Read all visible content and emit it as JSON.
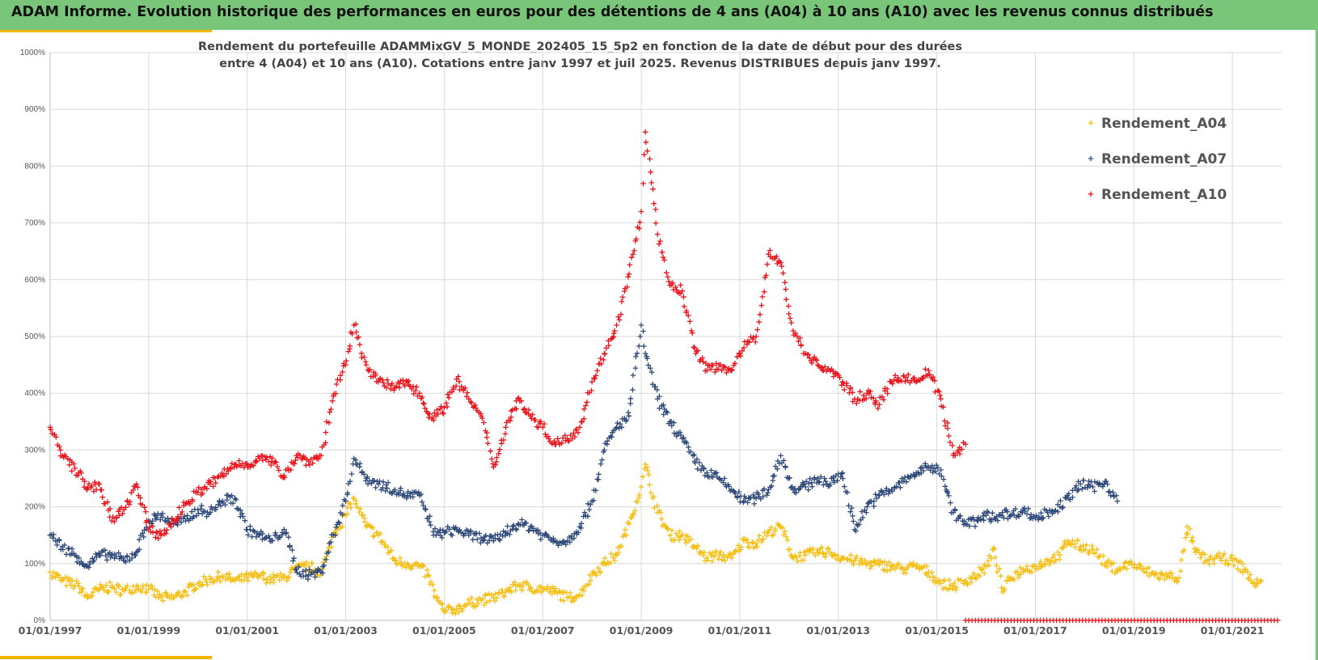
{
  "header": {
    "title": "ADAM Informe. Evolution historique des performances en euros pour des détentions de 4 ans (A04) à 10 ans (A10) avec les revenus connus distribués"
  },
  "colors": {
    "banner": "#79c67a",
    "accent": "#f4b400",
    "A04": "#f5bf16",
    "A07": "#2f4a7a",
    "A10": "#e8141c"
  },
  "chart_data": {
    "type": "scatter",
    "title_line1": "Rendement du portefeuille ADAMMixGV_5_MONDE_202405_15_5p2 en fonction de la date de début pour des durées",
    "title_line2": "entre 4 (A04) et 10 ans (A10). Cotations entre janv 1997 et juil 2025. Revenus DISTRIBUES depuis janv 1997.",
    "marker": "+",
    "x_type": "date",
    "xlim": [
      "1997-01-01",
      "2022-01-01"
    ],
    "ylim": [
      0,
      1000
    ],
    "y_unit": "%",
    "x_tick_labels": [
      "01/01/1997",
      "01/01/1999",
      "01/01/2001",
      "01/01/2003",
      "01/01/2005",
      "01/01/2007",
      "01/01/2009",
      "01/01/2011",
      "01/01/2013",
      "01/01/2015",
      "01/01/2017",
      "01/01/2019",
      "01/01/2021"
    ],
    "y_tick_labels": [
      "0%",
      "100%",
      "200%",
      "300%",
      "400%",
      "500%",
      "600%",
      "700%",
      "800%",
      "900%",
      "1000%"
    ],
    "grid": true,
    "legend_position": "top-right",
    "series": [
      {
        "name": "Rendement_A04",
        "points": [
          [
            "1997-01",
            85
          ],
          [
            "1997-04",
            70
          ],
          [
            "1997-08",
            60
          ],
          [
            "1997-10",
            40
          ],
          [
            "1998-01",
            55
          ],
          [
            "1998-04",
            58
          ],
          [
            "1998-07",
            52
          ],
          [
            "1998-10",
            60
          ],
          [
            "1999-01",
            55
          ],
          [
            "1999-04",
            40
          ],
          [
            "1999-07",
            40
          ],
          [
            "1999-10",
            50
          ],
          [
            "2000-01",
            65
          ],
          [
            "2000-04",
            72
          ],
          [
            "2000-07",
            78
          ],
          [
            "2000-10",
            70
          ],
          [
            "2001-01",
            75
          ],
          [
            "2001-04",
            78
          ],
          [
            "2001-07",
            72
          ],
          [
            "2001-10",
            75
          ],
          [
            "2002-01",
            90
          ],
          [
            "2002-04",
            95
          ],
          [
            "2002-07",
            85
          ],
          [
            "2002-10",
            150
          ],
          [
            "2003-01",
            185
          ],
          [
            "2003-03",
            215
          ],
          [
            "2003-06",
            165
          ],
          [
            "2003-09",
            150
          ],
          [
            "2004-01",
            105
          ],
          [
            "2004-04",
            100
          ],
          [
            "2004-07",
            95
          ],
          [
            "2004-09",
            80
          ],
          [
            "2004-11",
            40
          ],
          [
            "2005-01",
            15
          ],
          [
            "2005-04",
            20
          ],
          [
            "2005-07",
            30
          ],
          [
            "2005-10",
            35
          ],
          [
            "2006-01",
            40
          ],
          [
            "2006-04",
            50
          ],
          [
            "2006-07",
            62
          ],
          [
            "2006-10",
            58
          ],
          [
            "2007-01",
            55
          ],
          [
            "2007-04",
            50
          ],
          [
            "2007-07",
            40
          ],
          [
            "2007-10",
            45
          ],
          [
            "2008-01",
            80
          ],
          [
            "2008-04",
            100
          ],
          [
            "2008-07",
            115
          ],
          [
            "2008-10",
            170
          ],
          [
            "2009-01",
            235
          ],
          [
            "2009-02",
            275
          ],
          [
            "2009-05",
            190
          ],
          [
            "2009-08",
            150
          ],
          [
            "2009-11",
            150
          ],
          [
            "2010-02",
            130
          ],
          [
            "2010-05",
            110
          ],
          [
            "2010-08",
            115
          ],
          [
            "2010-11",
            110
          ],
          [
            "2011-02",
            140
          ],
          [
            "2011-05",
            135
          ],
          [
            "2011-08",
            155
          ],
          [
            "2011-11",
            165
          ],
          [
            "2012-02",
            110
          ],
          [
            "2012-05",
            115
          ],
          [
            "2012-08",
            120
          ],
          [
            "2012-11",
            120
          ],
          [
            "2013-02",
            110
          ],
          [
            "2013-05",
            105
          ],
          [
            "2013-08",
            100
          ],
          [
            "2013-11",
            98
          ],
          [
            "2014-02",
            95
          ],
          [
            "2014-05",
            90
          ],
          [
            "2014-08",
            95
          ],
          [
            "2014-11",
            85
          ],
          [
            "2015-02",
            65
          ],
          [
            "2015-05",
            60
          ],
          [
            "2015-08",
            70
          ],
          [
            "2015-11",
            80
          ],
          [
            "2016-01",
            95
          ],
          [
            "2016-03",
            125
          ],
          [
            "2016-05",
            50
          ],
          [
            "2016-07",
            75
          ],
          [
            "2016-10",
            90
          ],
          [
            "2017-01",
            95
          ],
          [
            "2017-04",
            105
          ],
          [
            "2017-07",
            115
          ],
          [
            "2017-09",
            140
          ],
          [
            "2017-12",
            130
          ],
          [
            "2018-03",
            125
          ],
          [
            "2018-06",
            100
          ],
          [
            "2018-09",
            90
          ],
          [
            "2018-12",
            100
          ],
          [
            "2019-03",
            90
          ],
          [
            "2019-06",
            80
          ],
          [
            "2019-09",
            78
          ],
          [
            "2019-12",
            75
          ],
          [
            "2020-02",
            165
          ],
          [
            "2020-04",
            120
          ],
          [
            "2020-07",
            105
          ],
          [
            "2020-10",
            110
          ],
          [
            "2021-01",
            105
          ],
          [
            "2021-04",
            90
          ],
          [
            "2021-06",
            65
          ],
          [
            "2021-08",
            70
          ]
        ]
      },
      {
        "name": "Rendement_A07",
        "points": [
          [
            "1997-01",
            150
          ],
          [
            "1997-04",
            130
          ],
          [
            "1997-08",
            110
          ],
          [
            "1997-10",
            95
          ],
          [
            "1998-01",
            115
          ],
          [
            "1998-04",
            115
          ],
          [
            "1998-07",
            105
          ],
          [
            "1998-10",
            120
          ],
          [
            "1999-01",
            175
          ],
          [
            "1999-04",
            185
          ],
          [
            "1999-07",
            170
          ],
          [
            "1999-10",
            175
          ],
          [
            "2000-01",
            195
          ],
          [
            "2000-04",
            190
          ],
          [
            "2000-07",
            210
          ],
          [
            "2000-10",
            215
          ],
          [
            "2001-01",
            160
          ],
          [
            "2001-04",
            150
          ],
          [
            "2001-07",
            140
          ],
          [
            "2001-10",
            160
          ],
          [
            "2002-01",
            90
          ],
          [
            "2002-04",
            80
          ],
          [
            "2002-07",
            85
          ],
          [
            "2002-10",
            150
          ],
          [
            "2003-01",
            210
          ],
          [
            "2003-03",
            285
          ],
          [
            "2003-06",
            250
          ],
          [
            "2003-09",
            240
          ],
          [
            "2004-01",
            230
          ],
          [
            "2004-04",
            220
          ],
          [
            "2004-07",
            220
          ],
          [
            "2004-09",
            180
          ],
          [
            "2004-11",
            150
          ],
          [
            "2005-01",
            155
          ],
          [
            "2005-04",
            160
          ],
          [
            "2005-07",
            150
          ],
          [
            "2005-10",
            145
          ],
          [
            "2006-01",
            140
          ],
          [
            "2006-04",
            155
          ],
          [
            "2006-07",
            170
          ],
          [
            "2006-10",
            165
          ],
          [
            "2007-01",
            150
          ],
          [
            "2007-04",
            140
          ],
          [
            "2007-07",
            140
          ],
          [
            "2007-10",
            165
          ],
          [
            "2008-01",
            210
          ],
          [
            "2008-04",
            300
          ],
          [
            "2008-07",
            340
          ],
          [
            "2008-10",
            360
          ],
          [
            "2009-01",
            520
          ],
          [
            "2009-02",
            470
          ],
          [
            "2009-05",
            390
          ],
          [
            "2009-08",
            350
          ],
          [
            "2009-11",
            320
          ],
          [
            "2010-02",
            280
          ],
          [
            "2010-05",
            260
          ],
          [
            "2010-08",
            250
          ],
          [
            "2010-11",
            230
          ],
          [
            "2011-02",
            210
          ],
          [
            "2011-05",
            215
          ],
          [
            "2011-08",
            230
          ],
          [
            "2011-11",
            290
          ],
          [
            "2012-02",
            230
          ],
          [
            "2012-05",
            235
          ],
          [
            "2012-08",
            250
          ],
          [
            "2012-11",
            240
          ],
          [
            "2013-02",
            260
          ],
          [
            "2013-05",
            160
          ],
          [
            "2013-08",
            200
          ],
          [
            "2013-11",
            220
          ],
          [
            "2014-02",
            230
          ],
          [
            "2014-05",
            245
          ],
          [
            "2014-08",
            260
          ],
          [
            "2014-11",
            270
          ],
          [
            "2015-02",
            265
          ],
          [
            "2015-05",
            190
          ],
          [
            "2015-08",
            170
          ],
          [
            "2015-11",
            175
          ],
          [
            "2016-01",
            185
          ],
          [
            "2016-03",
            180
          ],
          [
            "2016-05",
            190
          ],
          [
            "2016-07",
            185
          ],
          [
            "2016-10",
            195
          ],
          [
            "2017-01",
            180
          ],
          [
            "2017-04",
            190
          ],
          [
            "2017-07",
            200
          ],
          [
            "2017-09",
            215
          ],
          [
            "2017-12",
            240
          ],
          [
            "2018-03",
            235
          ],
          [
            "2018-06",
            245
          ],
          [
            "2018-09",
            210
          ]
        ]
      },
      {
        "name": "Rendement_A10",
        "points": [
          [
            "1997-01",
            340
          ],
          [
            "1997-04",
            290
          ],
          [
            "1997-08",
            260
          ],
          [
            "1997-10",
            230
          ],
          [
            "1998-01",
            240
          ],
          [
            "1998-04",
            175
          ],
          [
            "1998-07",
            195
          ],
          [
            "1998-10",
            240
          ],
          [
            "1999-01",
            160
          ],
          [
            "1999-04",
            150
          ],
          [
            "1999-07",
            175
          ],
          [
            "1999-10",
            205
          ],
          [
            "2000-01",
            225
          ],
          [
            "2000-04",
            240
          ],
          [
            "2000-07",
            255
          ],
          [
            "2000-10",
            275
          ],
          [
            "2001-01",
            275
          ],
          [
            "2001-04",
            285
          ],
          [
            "2001-07",
            280
          ],
          [
            "2001-10",
            255
          ],
          [
            "2002-01",
            290
          ],
          [
            "2002-04",
            280
          ],
          [
            "2002-07",
            290
          ],
          [
            "2002-10",
            395
          ],
          [
            "2003-01",
            450
          ],
          [
            "2003-03",
            520
          ],
          [
            "2003-06",
            450
          ],
          [
            "2003-09",
            420
          ],
          [
            "2004-01",
            410
          ],
          [
            "2004-04",
            420
          ],
          [
            "2004-07",
            400
          ],
          [
            "2004-09",
            365
          ],
          [
            "2004-11",
            360
          ],
          [
            "2005-01",
            375
          ],
          [
            "2005-04",
            425
          ],
          [
            "2005-07",
            390
          ],
          [
            "2005-10",
            360
          ],
          [
            "2006-01",
            270
          ],
          [
            "2006-04",
            340
          ],
          [
            "2006-07",
            390
          ],
          [
            "2006-10",
            360
          ],
          [
            "2007-01",
            340
          ],
          [
            "2007-04",
            310
          ],
          [
            "2007-07",
            320
          ],
          [
            "2007-10",
            340
          ],
          [
            "2008-01",
            420
          ],
          [
            "2008-04",
            470
          ],
          [
            "2008-07",
            520
          ],
          [
            "2008-10",
            610
          ],
          [
            "2009-01",
            720
          ],
          [
            "2009-02",
            860
          ],
          [
            "2009-05",
            680
          ],
          [
            "2009-08",
            590
          ],
          [
            "2009-11",
            580
          ],
          [
            "2010-02",
            480
          ],
          [
            "2010-05",
            440
          ],
          [
            "2010-08",
            450
          ],
          [
            "2010-11",
            440
          ],
          [
            "2011-02",
            480
          ],
          [
            "2011-05",
            500
          ],
          [
            "2011-08",
            645
          ],
          [
            "2011-11",
            630
          ],
          [
            "2012-02",
            510
          ],
          [
            "2012-05",
            470
          ],
          [
            "2012-08",
            450
          ],
          [
            "2012-11",
            440
          ],
          [
            "2013-02",
            420
          ],
          [
            "2013-05",
            390
          ],
          [
            "2013-08",
            400
          ],
          [
            "2013-11",
            380
          ],
          [
            "2014-02",
            420
          ],
          [
            "2014-05",
            430
          ],
          [
            "2014-08",
            420
          ],
          [
            "2014-11",
            440
          ],
          [
            "2015-02",
            390
          ],
          [
            "2015-05",
            290
          ],
          [
            "2015-08",
            310
          ]
        ]
      },
      {
        "name": "Rendement_A10",
        "in_legend": false,
        "points": [
          [
            "2015-08",
            0
          ],
          [
            "2021-12",
            0
          ]
        ]
      }
    ]
  }
}
